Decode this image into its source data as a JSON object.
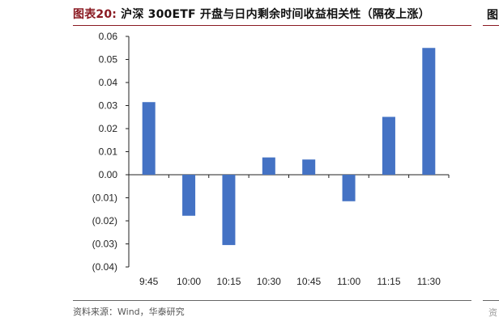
{
  "figure": {
    "label": "图表20:",
    "title": "沪深 300ETF 开盘与日内剩余时间收益相关性（隔夜上涨）"
  },
  "source": "资料来源：Wind，华泰研究",
  "edge": {
    "title_fragment": "图",
    "source_fragment": "资"
  },
  "chart_data": {
    "type": "bar",
    "categories": [
      "9:45",
      "10:00",
      "10:15",
      "10:30",
      "10:45",
      "11:00",
      "11:15",
      "11:30"
    ],
    "values": [
      0.0315,
      -0.0178,
      -0.0305,
      0.0075,
      0.0066,
      -0.0115,
      0.0251,
      0.055
    ],
    "ylim": [
      -0.04,
      0.06
    ],
    "yticks": [
      0.06,
      0.05,
      0.04,
      0.03,
      0.02,
      0.01,
      0.0,
      -0.01,
      -0.02,
      -0.03,
      -0.04
    ],
    "ytick_labels": [
      "0.06",
      "0.05",
      "0.04",
      "0.03",
      "0.02",
      "0.01",
      "0.00",
      "(0.01)",
      "(0.02)",
      "(0.03)",
      "(0.04)"
    ],
    "bar_color": "#4472C4",
    "grid": false,
    "title": "",
    "xlabel": "",
    "ylabel": ""
  }
}
